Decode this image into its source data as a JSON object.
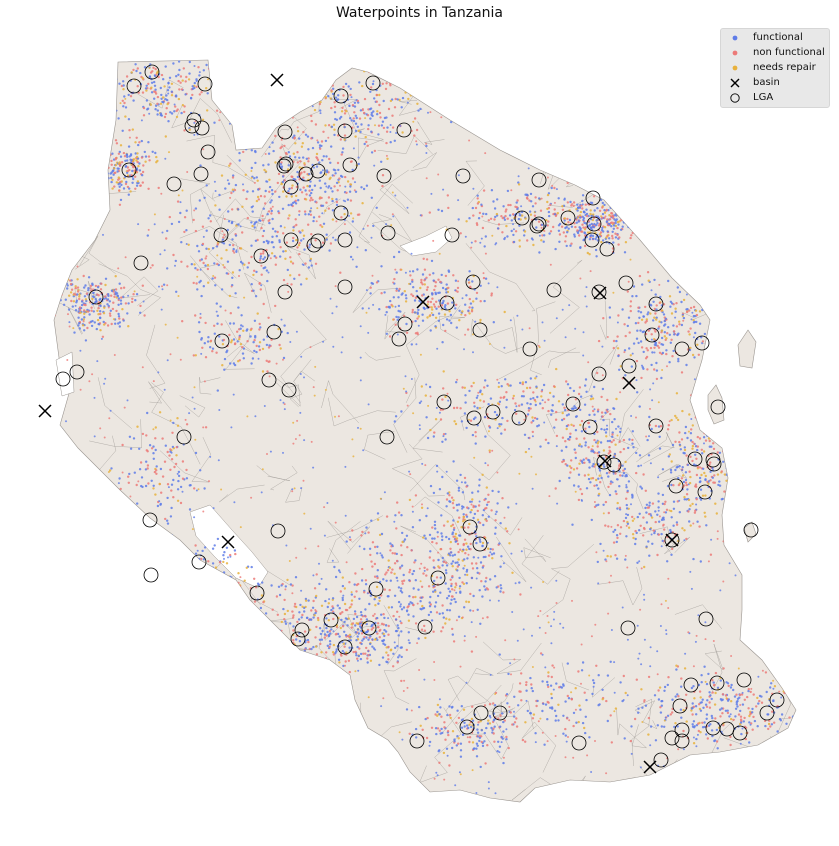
{
  "title": "Waterpoints in Tanzania",
  "legend": [
    {
      "label": "functional",
      "kind": "point",
      "color": "#5f7ce8"
    },
    {
      "label": "non functional",
      "kind": "point",
      "color": "#ec7a78"
    },
    {
      "label": "needs repair",
      "kind": "point",
      "color": "#e8b13c"
    },
    {
      "label": "basin",
      "kind": "cross",
      "color": "#000000"
    },
    {
      "label": "LGA",
      "kind": "circle",
      "color": "#000000"
    }
  ],
  "colors": {
    "land": "#ece7e1",
    "boundary": "#9a9590",
    "background": "#ffffff"
  }
}
